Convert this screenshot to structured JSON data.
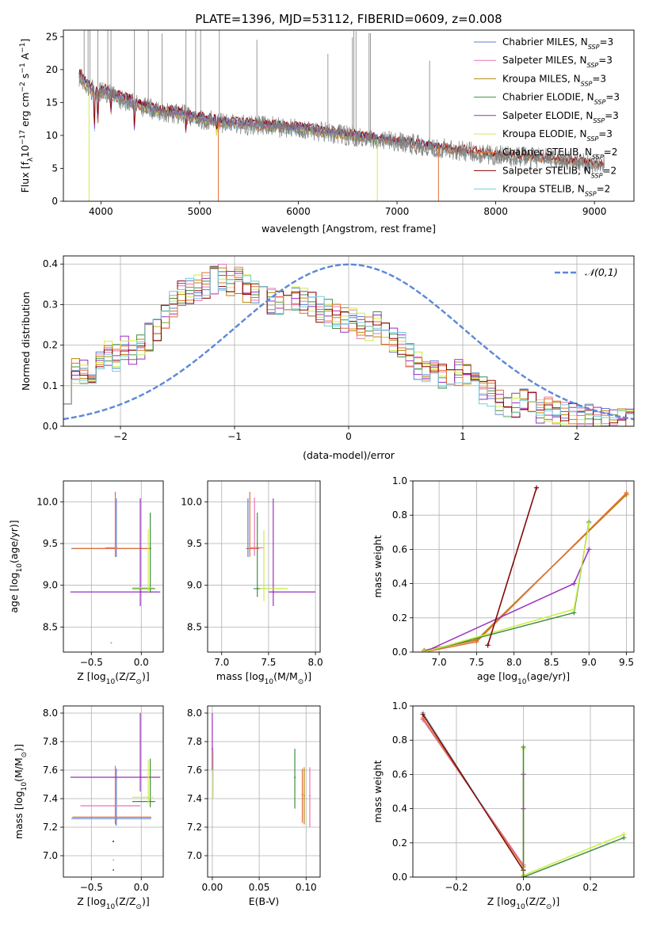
{
  "figure_title": "PLATE=1396, MJD=53112, FIBERID=0609, z=0.008",
  "colors": {
    "Chabrier MILES": "#5b7fd0",
    "Salpeter MILES": "#e874b8",
    "Kroupa MILES": "#b8860b",
    "Chabrier ELODIE": "#3f8f3f",
    "Salpeter ELODIE": "#9b2fbf",
    "Kroupa ELODIE": "#ccee44",
    "Chabrier STELIB": "#e07030",
    "Salpeter STELIB": "#8b0000",
    "Kroupa STELIB": "#77ccdd",
    "data": "#808080",
    "normal": "#5b88d8",
    "grid": "#b0b0b0"
  },
  "legend_spectrum": [
    {
      "pre": "Chabrier MILES, N",
      "n": "3",
      "key": "Chabrier MILES"
    },
    {
      "pre": "Salpeter MILES, N",
      "n": "3",
      "key": "Salpeter MILES"
    },
    {
      "pre": "Kroupa MILES, N",
      "n": "3",
      "key": "Kroupa MILES"
    },
    {
      "pre": "Chabrier ELODIE, N",
      "n": "3",
      "key": "Chabrier ELODIE"
    },
    {
      "pre": "Salpeter ELODIE, N",
      "n": "3",
      "key": "Salpeter ELODIE"
    },
    {
      "pre": "Kroupa ELODIE, N",
      "n": "3",
      "key": "Kroupa ELODIE"
    },
    {
      "pre": "Chabrier STELIB, N",
      "n": "2",
      "key": "Chabrier STELIB"
    },
    {
      "pre": "Salpeter STELIB, N",
      "n": "2",
      "key": "Salpeter STELIB"
    },
    {
      "pre": "Kroupa STELIB, N",
      "n": "2",
      "key": "Kroupa STELIB"
    }
  ],
  "legend_sub": "SSP",
  "chart_data": [
    {
      "id": "spectrum",
      "type": "line",
      "xlabel": "wavelength [Angstrom, rest frame]",
      "ylabel_parts": [
        "Flux [f",
        "λ",
        "10",
        "−17",
        " erg cm",
        "−2",
        " s",
        "−1",
        " A",
        "−1",
        "]"
      ],
      "xlim": [
        3620,
        9400
      ],
      "ylim": [
        0,
        26
      ],
      "xticks": [
        4000,
        5000,
        6000,
        7000,
        8000,
        9000
      ],
      "yticks": [
        0,
        5,
        10,
        15,
        20,
        25
      ],
      "continuum": [
        [
          3780,
          19
        ],
        [
          3860,
          17.5
        ],
        [
          3950,
          16.5
        ],
        [
          4050,
          16.5
        ],
        [
          4200,
          15.5
        ],
        [
          4400,
          14.5
        ],
        [
          4600,
          13.5
        ],
        [
          4800,
          13.3
        ],
        [
          5000,
          12.5
        ],
        [
          5300,
          11.8
        ],
        [
          5600,
          11.5
        ],
        [
          6000,
          11
        ],
        [
          6500,
          10
        ],
        [
          7000,
          9
        ],
        [
          7500,
          8
        ],
        [
          8000,
          7
        ],
        [
          8500,
          6.5
        ],
        [
          9100,
          5.5
        ]
      ]
    },
    {
      "id": "residuals",
      "type": "line",
      "xlabel": "(data-model)/error",
      "ylabel": "Normed distribution",
      "xlim": [
        -2.5,
        2.5
      ],
      "ylim": [
        0,
        0.42
      ],
      "xticks": [
        -2,
        -1,
        0,
        1,
        2
      ],
      "ytick_values": [
        0,
        0.1,
        0.2,
        0.3,
        0.4
      ],
      "ytick_labels": [
        "0.0",
        "0.1",
        "0.2",
        "0.3",
        "0.4"
      ],
      "xtick_labels": [
        "−2",
        "−1",
        "0",
        "1",
        "2"
      ],
      "legend": "𝒩(0,1)",
      "hist_base": [
        0.09,
        0.14,
        0.13,
        0.12,
        0.16,
        0.18,
        0.17,
        0.19,
        0.18,
        0.2,
        0.22,
        0.24,
        0.27,
        0.3,
        0.33,
        0.33,
        0.34,
        0.35,
        0.36,
        0.37,
        0.35,
        0.36,
        0.34,
        0.33,
        0.32,
        0.31,
        0.3,
        0.31,
        0.32,
        0.31,
        0.3,
        0.29,
        0.28,
        0.27,
        0.26,
        0.27,
        0.25,
        0.24,
        0.25,
        0.23,
        0.21,
        0.2,
        0.17,
        0.15,
        0.13,
        0.14,
        0.12,
        0.11,
        0.13,
        0.12,
        0.1,
        0.09,
        0.08,
        0.06,
        0.05,
        0.05,
        0.06,
        0.05,
        0.04,
        0.04,
        0.03,
        0.03,
        0.03,
        0.02,
        0.02,
        0.02,
        0.02,
        0.01,
        0.01,
        0.01
      ]
    },
    {
      "id": "age-Z",
      "type": "scatter",
      "xlabel_parts": [
        "Z [log",
        "10",
        "(Z/Z",
        "⊙",
        ")]"
      ],
      "ylabel_parts": [
        "age  [log",
        "10",
        "(age/yr)]"
      ],
      "xlim": [
        -0.78,
        0.22
      ],
      "ylim": [
        8.2,
        10.25
      ],
      "xtick_values": [
        -0.5,
        0
      ],
      "xtick_labels": [
        "−0.5",
        "0.0"
      ],
      "ytick_values": [
        8.5,
        9,
        9.5,
        10
      ],
      "ytick_labels": [
        "8.5",
        "9.0",
        "9.5",
        "10.0"
      ],
      "points": [
        {
          "key": "Chabrier MILES",
          "x": -0.25,
          "xerr": [
            0.45,
            0.35
          ],
          "y": 9.44,
          "yerr": [
            0.1,
            0.6
          ]
        },
        {
          "key": "Chabrier STELIB",
          "x": -0.26,
          "xerr": [
            0.42,
            0.36
          ],
          "y": 9.44,
          "yerr": [
            0.1,
            0.68
          ]
        },
        {
          "key": "Salpeter MILES",
          "x": -0.26,
          "xerr": [
            0.1,
            0.02
          ],
          "y": 9.45,
          "yerr": [
            0.1,
            0.6
          ]
        },
        {
          "key": "Salpeter ELODIE",
          "x": -0.01,
          "xerr": [
            0.7,
            0.2
          ],
          "y": 8.92,
          "yerr": [
            0.17,
            1.12
          ]
        },
        {
          "key": "Chabrier ELODIE",
          "x": 0.09,
          "xerr": [
            0.18,
            0.05
          ],
          "y": 8.96,
          "yerr": [
            0.05,
            0.91
          ]
        },
        {
          "key": "Kroupa ELODIE",
          "x": 0.07,
          "xerr": [
            0.16,
            0.05
          ],
          "y": 8.97,
          "yerr": [
            0.05,
            0.7
          ]
        },
        {
          "key": "Salpeter MILES",
          "x": -0.3,
          "xerr": [
            0,
            0
          ],
          "y": 8.31,
          "yerr": [
            0,
            0
          ]
        }
      ]
    },
    {
      "id": "age-mass",
      "type": "scatter",
      "xlabel_parts": [
        "mass [log",
        "10",
        "(M/M",
        "⊙",
        ")]"
      ],
      "ylabel_parts": [],
      "xlim": [
        6.85,
        8.05
      ],
      "ylim": [
        8.2,
        10.25
      ],
      "xtick_values": [
        7,
        7.5,
        8
      ],
      "xtick_labels": [
        "7.0",
        "7.5",
        "8.0"
      ],
      "ytick_values": [
        8.5,
        9,
        9.5,
        10
      ],
      "ytick_labels": [
        "8.5",
        "9.0",
        "9.5",
        "10.0"
      ],
      "points": [
        {
          "key": "Chabrier MILES",
          "x": 7.28,
          "xerr": [
            0.02,
            0.06
          ],
          "y": 9.44,
          "yerr": [
            0.1,
            0.6
          ]
        },
        {
          "key": "Chabrier STELIB",
          "x": 7.3,
          "xerr": [
            0.03,
            0.1
          ],
          "y": 9.44,
          "yerr": [
            0.1,
            0.68
          ]
        },
        {
          "key": "Salpeter MILES",
          "x": 7.35,
          "xerr": [
            0.05,
            0.1
          ],
          "y": 9.45,
          "yerr": [
            0.1,
            0.6
          ]
        },
        {
          "key": "Salpeter ELODIE",
          "x": 7.55,
          "xerr": [
            0.05,
            0.45
          ],
          "y": 8.92,
          "yerr": [
            0.17,
            1.12
          ]
        },
        {
          "key": "Chabrier ELODIE",
          "x": 7.38,
          "xerr": [
            0.04,
            0.3
          ],
          "y": 8.96,
          "yerr": [
            0.1,
            0.91
          ]
        },
        {
          "key": "Kroupa ELODIE",
          "x": 7.45,
          "xerr": [
            0.04,
            0.26
          ],
          "y": 8.96,
          "yerr": [
            0.15,
            0.7
          ]
        }
      ]
    },
    {
      "id": "weight-age",
      "type": "line",
      "xlabel_parts": [
        "age  [log",
        "10",
        "(age/yr)]"
      ],
      "ylabel": "mass weight",
      "xlim": [
        6.65,
        9.6
      ],
      "ylim": [
        0,
        1
      ],
      "xtick_values": [
        7,
        7.5,
        8,
        8.5,
        9,
        9.5
      ],
      "xtick_labels": [
        "7.0",
        "7.5",
        "8.0",
        "8.5",
        "9.0",
        "9.5"
      ],
      "ytick_values": [
        0,
        0.2,
        0.4,
        0.6,
        0.8,
        1
      ],
      "ytick_labels": [
        "0.0",
        "0.2",
        "0.4",
        "0.6",
        "0.8",
        "1.0"
      ],
      "series": [
        {
          "key": "Chabrier MILES",
          "x": [
            6.8,
            7.5,
            9.5
          ],
          "y": [
            0.01,
            0.07,
            0.92
          ]
        },
        {
          "key": "Salpeter MILES",
          "x": [
            6.8,
            7.5,
            9.5
          ],
          "y": [
            0.01,
            0.07,
            0.92
          ]
        },
        {
          "key": "Kroupa MILES",
          "x": [
            6.8,
            7.5,
            9.5
          ],
          "y": [
            0.01,
            0.07,
            0.92
          ]
        },
        {
          "key": "Chabrier STELIB",
          "x": [
            6.8,
            7.5,
            9.5
          ],
          "y": [
            0,
            0.06,
            0.93
          ]
        },
        {
          "key": "Salpeter ELODIE",
          "x": [
            6.8,
            8.8,
            9
          ],
          "y": [
            0,
            0.4,
            0.6
          ]
        },
        {
          "key": "Chabrier ELODIE",
          "x": [
            6.8,
            8.8,
            9
          ],
          "y": [
            0,
            0.23,
            0.76
          ]
        },
        {
          "key": "Kroupa ELODIE",
          "x": [
            6.8,
            8.8,
            9
          ],
          "y": [
            0,
            0.25,
            0.75
          ]
        },
        {
          "key": "Kroupa STELIB",
          "x": [
            7.65,
            8.3
          ],
          "y": [
            0.04,
            0.96
          ]
        },
        {
          "key": "Salpeter STELIB",
          "x": [
            7.65,
            8.3
          ],
          "y": [
            0.04,
            0.96
          ]
        }
      ]
    },
    {
      "id": "mass-Z",
      "type": "scatter",
      "xlabel_parts": [
        "Z [log",
        "10",
        "(Z/Z",
        "⊙",
        ")]"
      ],
      "ylabel_parts": [
        "mass [log",
        "10",
        "(M/M",
        "⊙",
        ")]"
      ],
      "xlim": [
        -0.78,
        0.22
      ],
      "ylim": [
        6.85,
        8.05
      ],
      "xtick_values": [
        -0.5,
        0
      ],
      "xtick_labels": [
        "−0.5",
        "0.0"
      ],
      "ytick_values": [
        7,
        7.2,
        7.4,
        7.6,
        7.8,
        8
      ],
      "ytick_labels": [
        "7.0",
        "7.2",
        "7.4",
        "7.6",
        "7.8",
        "8.0"
      ],
      "points": [
        {
          "key": "Chabrier MILES",
          "x": -0.25,
          "xerr": [
            0.45,
            0.35
          ],
          "y": 7.26,
          "yerr": [
            0.05,
            0.35
          ]
        },
        {
          "key": "Chabrier STELIB",
          "x": -0.26,
          "xerr": [
            0.43,
            0.36
          ],
          "y": 7.27,
          "yerr": [
            0.05,
            0.36
          ]
        },
        {
          "key": "Salpeter MILES",
          "x": -0.26,
          "xerr": [
            0.35,
            0.25
          ],
          "y": 7.35,
          "yerr": [
            0.1,
            0.27
          ]
        },
        {
          "key": "Salpeter ELODIE",
          "x": -0.01,
          "xerr": [
            0.7,
            0.2
          ],
          "y": 7.55,
          "yerr": [
            0.1,
            0.45
          ]
        },
        {
          "key": "Chabrier ELODIE",
          "x": 0.09,
          "xerr": [
            0.18,
            0.05
          ],
          "y": 7.38,
          "yerr": [
            0.04,
            0.3
          ]
        },
        {
          "key": "Kroupa ELODIE",
          "x": 0.07,
          "xerr": [
            0.16,
            0.05
          ],
          "y": 7.41,
          "yerr": [
            0.04,
            0.26
          ]
        },
        {
          "key": "Salpeter STELIB",
          "x": -0.28,
          "xerr": [
            0,
            0
          ],
          "y": 7.1,
          "yerr": [
            0,
            0
          ]
        },
        {
          "key": "Kroupa STELIB",
          "x": -0.28,
          "xerr": [
            0,
            0
          ],
          "y": 6.97,
          "yerr": [
            0,
            0
          ]
        },
        {
          "key": "Salpeter ELODIE",
          "x": -0.28,
          "xerr": [
            0,
            0
          ],
          "y": 6.9,
          "yerr": [
            0,
            0
          ]
        }
      ]
    },
    {
      "id": "mass-ebv",
      "type": "scatter",
      "xlabel_parts": [
        "E(B-V)"
      ],
      "ylabel_parts": [],
      "xlim": [
        -0.005,
        0.115
      ],
      "ylim": [
        6.85,
        8.05
      ],
      "xtick_values": [
        0,
        0.05,
        0.1
      ],
      "xtick_labels": [
        "0.00",
        "0.05",
        "0.10"
      ],
      "ytick_values": [
        7,
        7.2,
        7.4,
        7.6,
        7.8,
        8
      ],
      "ytick_labels": [
        "7.0",
        "7.2",
        "7.4",
        "7.6",
        "7.8",
        "8.0"
      ],
      "points": [
        {
          "key": "Salpeter ELODIE",
          "x": 0.0,
          "xerr": [
            0,
            0
          ],
          "y": 7.75,
          "yerr": [
            0.15,
            0.25
          ]
        },
        {
          "key": "Kroupa ELODIE",
          "x": 0.001,
          "xerr": [
            0,
            0
          ],
          "y": 7.6,
          "yerr": [
            0.2,
            0.15
          ]
        },
        {
          "key": "Chabrier ELODIE",
          "x": 0.088,
          "xerr": [
            0,
            0
          ],
          "y": 7.55,
          "yerr": [
            0.22,
            0.2
          ]
        },
        {
          "key": "Chabrier STELIB",
          "x": 0.096,
          "xerr": [
            0,
            0
          ],
          "y": 7.43,
          "yerr": [
            0.2,
            0.18
          ]
        },
        {
          "key": "Kroupa MILES",
          "x": 0.098,
          "xerr": [
            0,
            0
          ],
          "y": 7.42,
          "yerr": [
            0.2,
            0.2
          ]
        },
        {
          "key": "Salpeter MILES",
          "x": 0.104,
          "xerr": [
            0,
            0
          ],
          "y": 7.42,
          "yerr": [
            0.22,
            0.2
          ]
        }
      ]
    },
    {
      "id": "weight-Z",
      "type": "line",
      "xlabel_parts": [
        "Z [log",
        "10",
        "(Z/Z",
        "⊙",
        ")]"
      ],
      "ylabel": "mass weight",
      "xlim": [
        -0.33,
        0.33
      ],
      "ylim": [
        0,
        1
      ],
      "xtick_values": [
        -0.2,
        0,
        0.2
      ],
      "xtick_labels": [
        "−0.2",
        "0.0",
        "0.2"
      ],
      "ytick_values": [
        0,
        0.2,
        0.4,
        0.6,
        0.8,
        1
      ],
      "ytick_labels": [
        "0.0",
        "0.2",
        "0.4",
        "0.6",
        "0.8",
        "1.0"
      ],
      "series": [
        {
          "key": "Chabrier MILES",
          "x": [
            -0.3,
            0,
            0
          ],
          "y": [
            0.92,
            0.07,
            0.01
          ]
        },
        {
          "key": "Salpeter MILES",
          "x": [
            -0.3,
            0,
            0
          ],
          "y": [
            0.92,
            0.07,
            0.01
          ]
        },
        {
          "key": "Chabrier STELIB",
          "x": [
            -0.3,
            0,
            0
          ],
          "y": [
            0.93,
            0.06,
            0
          ]
        },
        {
          "key": "Kroupa STELIB",
          "x": [
            -0.3,
            0
          ],
          "y": [
            0.96,
            0.04
          ]
        },
        {
          "key": "Salpeter STELIB",
          "x": [
            -0.3,
            0
          ],
          "y": [
            0.95,
            0.04
          ]
        },
        {
          "key": "Salpeter ELODIE",
          "x": [
            0,
            0,
            0
          ],
          "y": [
            0,
            0.4,
            0.6
          ]
        },
        {
          "key": "Kroupa ELODIE",
          "x": [
            0,
            0,
            0.3
          ],
          "y": [
            0.75,
            0.01,
            0.25
          ]
        },
        {
          "key": "Chabrier ELODIE",
          "x": [
            0,
            0,
            0.3
          ],
          "y": [
            0.76,
            0,
            0.23
          ]
        }
      ]
    }
  ]
}
